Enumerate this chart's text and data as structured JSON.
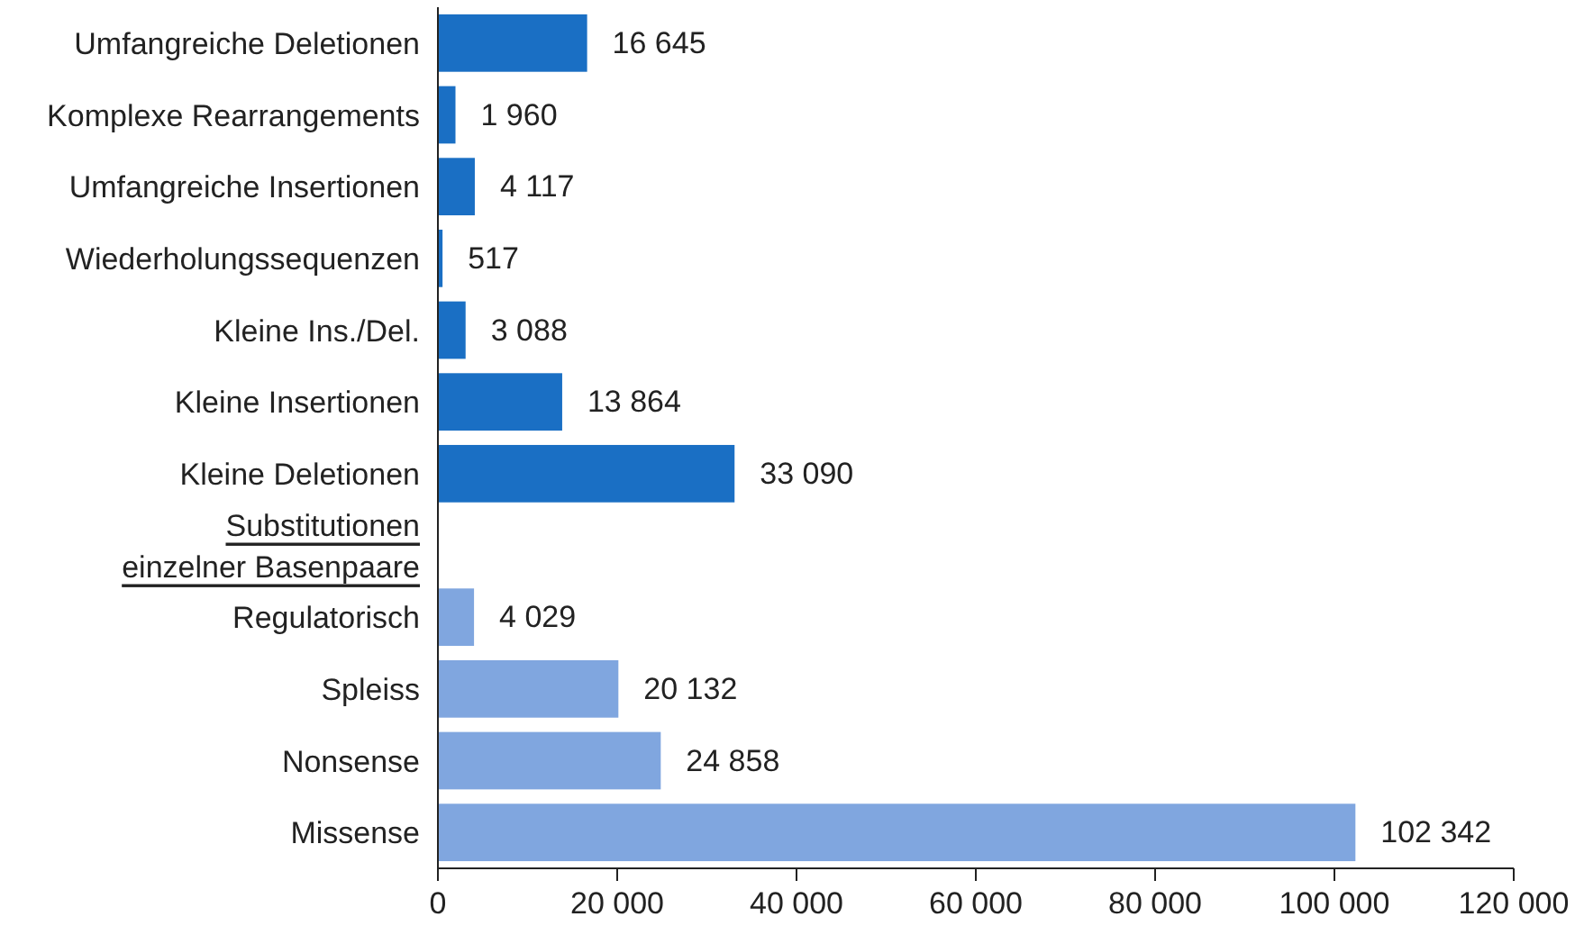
{
  "chart_data": {
    "type": "bar",
    "orientation": "horizontal",
    "categories": [
      "Umfangreiche Deletionen",
      "Komplexe Rearrangements",
      "Umfangreiche Insertionen",
      "Wiederholungssequenzen",
      "Kleine Ins./Del.",
      "Kleine Insertionen",
      "Kleine Deletionen",
      "Substitutionen\neinzelner Basenpaare",
      "Regulatorisch",
      "Spleiss",
      "Nonsense",
      "Missense"
    ],
    "values": [
      16645,
      1960,
      4117,
      517,
      3088,
      13864,
      33090,
      null,
      4029,
      20132,
      24858,
      102342
    ],
    "colors": [
      "#1a6fc4",
      "#1a6fc4",
      "#1a6fc4",
      "#1a6fc4",
      "#1a6fc4",
      "#1a6fc4",
      "#1a6fc4",
      null,
      "#80a6df",
      "#80a6df",
      "#80a6df",
      "#80a6df"
    ],
    "value_labels": [
      "16 645",
      "1 960",
      "4 117",
      "517",
      "3 088",
      "13 864",
      "33 090",
      null,
      "4 029",
      "20 132",
      "24 858",
      "102 342"
    ],
    "xlim": [
      0,
      120000
    ],
    "xticks": [
      0,
      {
        "value": 20000,
        "label": "20 000"
      },
      {
        "value": 40000,
        "label": "40 000"
      },
      {
        "value": 60000,
        "label": "60 000"
      },
      {
        "value": 80000,
        "label": "80 000"
      },
      {
        "value": 100000,
        "label": "100 000"
      },
      {
        "value": 120000,
        "label": "120 000"
      }
    ],
    "grid": false
  }
}
